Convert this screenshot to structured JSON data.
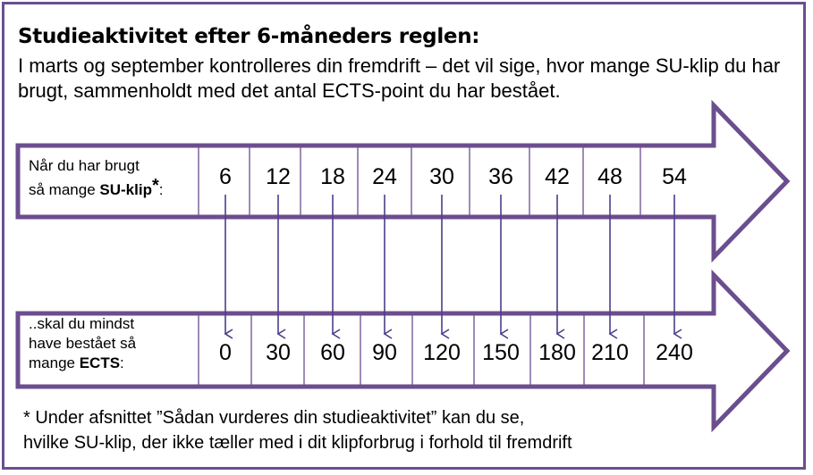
{
  "title": "Studieaktivitet efter 6-måneders reglen:",
  "intro": "I marts og september kontrolleres din fremdrift – det vil sige, hvor mange SU-klip du har brugt, sammenholdt med det antal ECTS-point du har bestået.",
  "top_row": {
    "label_line1": "Når du har brugt",
    "label_line2_pre": "så mange ",
    "label_line2_bold": "SU-klip",
    "label_star": "*",
    "label_colon": ":",
    "values": [
      "6",
      "12",
      "18",
      "24",
      "30",
      "36",
      "42",
      "48",
      "54"
    ]
  },
  "bottom_row": {
    "label_line1": "..skal du mindst",
    "label_line2": "have bestået så",
    "label_line3_pre": "mange ",
    "label_line3_bold": "ECTS",
    "label_colon": ":",
    "values": [
      "0",
      "30",
      "60",
      "90",
      "120",
      "150",
      "180",
      "210",
      "240"
    ]
  },
  "footnote_line1": "* Under afsnittet ”Sådan vurderes din studieaktivitet” kan du se,",
  "footnote_line2": "hvilke SU-klip, der ikke tæller med i dit klipforbrug i forhold til fremdrift",
  "colors": {
    "accent": "#6b4e8f",
    "arrow_line": "#4a3f8a"
  }
}
